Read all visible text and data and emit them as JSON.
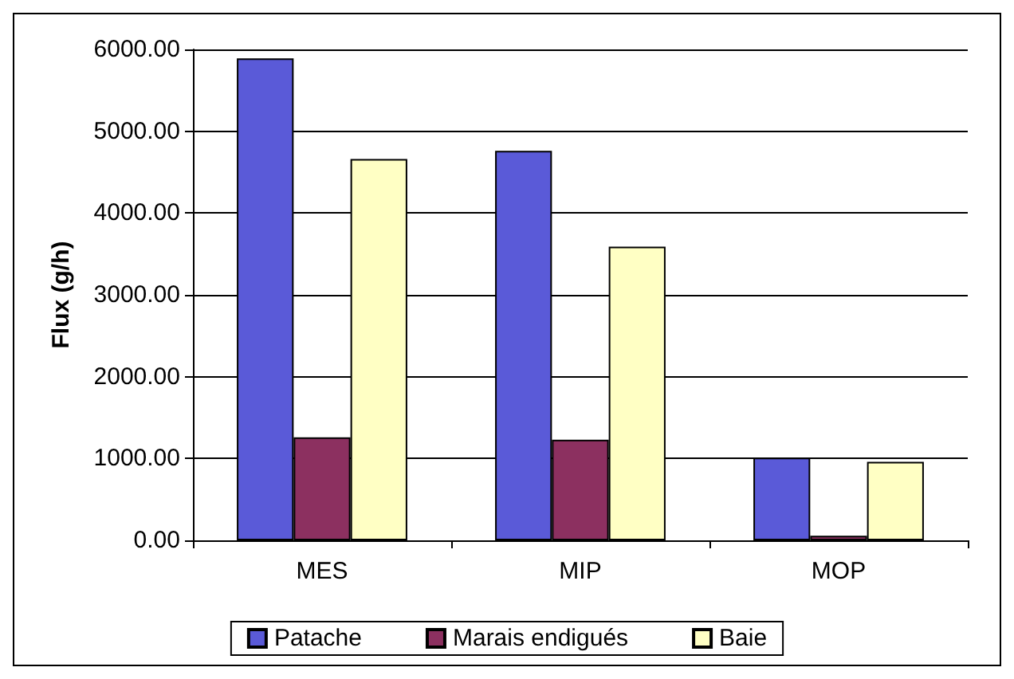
{
  "chart_data": {
    "type": "bar",
    "ylabel": "Flux (g/h)",
    "categories": [
      "MES",
      "MIP",
      "MOP"
    ],
    "series": [
      {
        "name": "Patache",
        "color": "#5a5ad8",
        "values": [
          5890,
          4760,
          1010
        ]
      },
      {
        "name": "Marais endigués",
        "color": "#8c3060",
        "values": [
          1260,
          1230,
          55
        ]
      },
      {
        "name": "Baie",
        "color": "#ffffc4",
        "values": [
          4660,
          3590,
          960
        ]
      }
    ],
    "ylim": [
      0,
      6000
    ],
    "yticks": [
      {
        "value": 0,
        "label": "0.00"
      },
      {
        "value": 1000,
        "label": "1000.00"
      },
      {
        "value": 2000,
        "label": "2000.00"
      },
      {
        "value": 3000,
        "label": "3000.00"
      },
      {
        "value": 4000,
        "label": "4000.00"
      },
      {
        "value": 5000,
        "label": "5000.00"
      },
      {
        "value": 6000,
        "label": "6000.00"
      }
    ],
    "grid": "y",
    "legend": "bottom"
  }
}
